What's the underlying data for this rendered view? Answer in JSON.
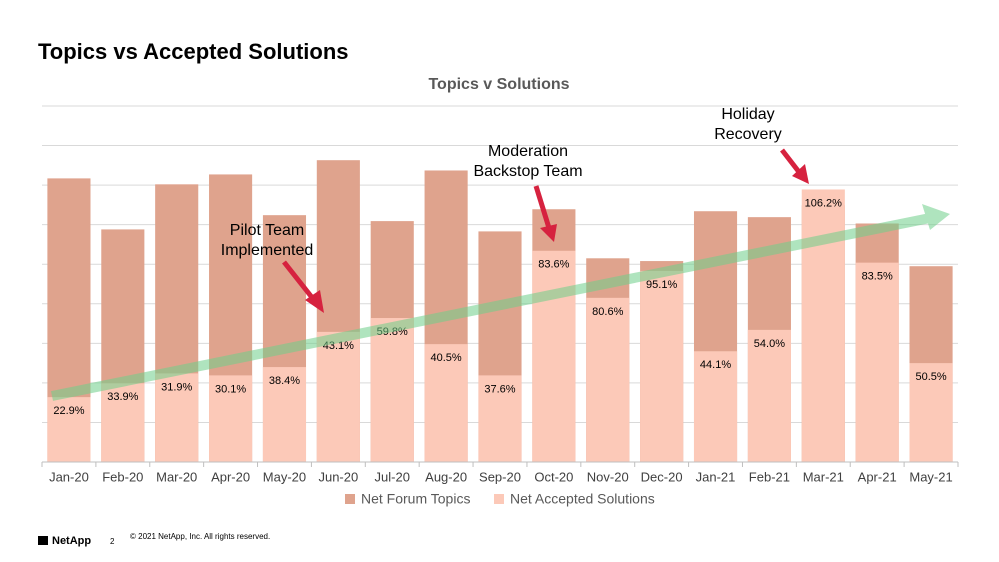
{
  "slide": {
    "title": "Topics vs Accepted Solutions",
    "logo": "NetApp",
    "page": "2",
    "copyright": "© 2021 NetApp, Inc. All rights reserved."
  },
  "chart_data": {
    "type": "overlap-bar",
    "title": "Topics v Solutions",
    "categories": [
      "Jan-20",
      "Feb-20",
      "Mar-20",
      "Apr-20",
      "May-20",
      "Jun-20",
      "Jul-20",
      "Aug-20",
      "Sep-20",
      "Oct-20",
      "Nov-20",
      "Dec-20",
      "Jan-21",
      "Feb-21",
      "Mar-21",
      "Apr-21",
      "May-21"
    ],
    "series": [
      {
        "name": "Net Forum Topics",
        "color": "#dfa38d",
        "values": [
          717,
          588,
          702,
          727,
          624,
          763,
          609,
          737,
          583,
          639,
          515,
          508,
          634,
          619,
          649,
          603,
          495
        ]
      },
      {
        "name": "Net Accepted Solutions",
        "color": "#fcc9b8",
        "values": [
          164,
          199,
          224,
          219,
          240,
          329,
          364,
          298,
          219,
          534,
          415,
          483,
          280,
          334,
          689,
          504,
          250
        ]
      }
    ],
    "ratio": {
      "values": [
        22.9,
        33.9,
        31.9,
        30.1,
        38.4,
        43.1,
        59.8,
        40.5,
        37.6,
        83.6,
        80.6,
        95.1,
        44.1,
        54.0,
        106.2,
        83.5,
        50.5
      ],
      "value_labels": [
        "22.9%",
        "33.9%",
        "31.9%",
        "30.1%",
        "38.4%",
        "43.1%",
        "59.8%",
        "40.5%",
        "37.6%",
        "83.6%",
        "80.6%",
        "95.1%",
        "44.1%",
        "54.0%",
        "106.2%",
        "83.5%",
        "50.5%"
      ]
    },
    "annotations": [
      [
        "Pilot Team",
        "Implemented"
      ],
      [
        "Moderation",
        "Backstop Team"
      ],
      [
        "Holiday",
        "Recovery"
      ]
    ],
    "ylim": [
      0,
      900
    ],
    "yticks": [
      0,
      100,
      200,
      300,
      400,
      500,
      600,
      700,
      800,
      900
    ],
    "y_tick_labels": false,
    "grid": true,
    "legend": "bottom"
  }
}
